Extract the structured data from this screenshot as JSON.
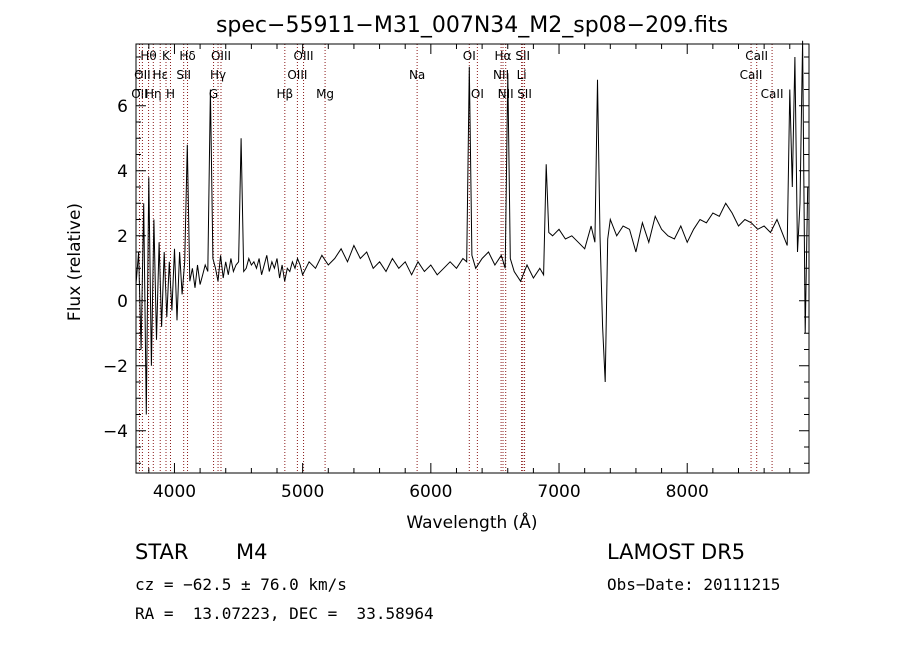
{
  "chart_data": {
    "type": "line",
    "title": "spec−55911−M31_007N34_M2_sp08−209.fits",
    "xlabel": "Wavelength (Å)",
    "ylabel": "Flux (relative)",
    "xlim": [
      3700,
      8950
    ],
    "ylim": [
      -5.3,
      7.9
    ],
    "xticks": [
      4000,
      5000,
      6000,
      7000,
      8000
    ],
    "yticks": [
      -4,
      -2,
      0,
      2,
      4,
      6
    ],
    "grid": false,
    "line_color": "#000000",
    "marker_color": "#8b1a1a",
    "series": [
      {
        "x": [
          3700,
          3720,
          3740,
          3760,
          3780,
          3800,
          3820,
          3840,
          3860,
          3880,
          3900,
          3920,
          3940,
          3960,
          3980,
          4000,
          4020,
          4040,
          4060,
          4080,
          4100,
          4120,
          4140,
          4160,
          4180,
          4200,
          4220,
          4240,
          4260,
          4280,
          4300,
          4320,
          4340,
          4360,
          4380,
          4400,
          4420,
          4440,
          4460,
          4480,
          4500,
          4520,
          4540,
          4560,
          4580,
          4600,
          4620,
          4640,
          4660,
          4680,
          4700,
          4720,
          4740,
          4760,
          4780,
          4800,
          4820,
          4840,
          4860,
          4880,
          4900,
          4920,
          4940,
          4960,
          4980,
          5000,
          5050,
          5100,
          5150,
          5200,
          5250,
          5300,
          5350,
          5400,
          5450,
          5500,
          5550,
          5600,
          5650,
          5700,
          5750,
          5800,
          5850,
          5900,
          5950,
          6000,
          6050,
          6100,
          6150,
          6200,
          6250,
          6280,
          6300,
          6320,
          6350,
          6400,
          6450,
          6500,
          6550,
          6580,
          6600,
          6620,
          6650,
          6700,
          6750,
          6800,
          6850,
          6880,
          6900,
          6920,
          6950,
          7000,
          7050,
          7100,
          7150,
          7200,
          7250,
          7280,
          7300,
          7320,
          7340,
          7360,
          7380,
          7400,
          7450,
          7500,
          7550,
          7600,
          7650,
          7700,
          7750,
          7800,
          7850,
          7900,
          7950,
          8000,
          8050,
          8100,
          8150,
          8200,
          8250,
          8300,
          8350,
          8400,
          8450,
          8500,
          8550,
          8600,
          8650,
          8700,
          8750,
          8780,
          8800,
          8820,
          8840,
          8860,
          8880,
          8900,
          8920,
          8940
        ],
        "y": [
          0.5,
          1.5,
          -1.5,
          3.0,
          -3.5,
          3.8,
          -2.0,
          2.5,
          -1.2,
          1.8,
          -0.8,
          1.5,
          -0.5,
          1.2,
          -0.3,
          1.6,
          -0.6,
          1.5,
          0.2,
          1.2,
          4.8,
          0.6,
          1.0,
          0.4,
          1.1,
          0.5,
          0.8,
          1.1,
          0.9,
          6.5,
          1.3,
          1.0,
          0.6,
          1.4,
          0.7,
          1.2,
          0.8,
          1.3,
          0.9,
          1.1,
          1.2,
          5.0,
          0.9,
          1.0,
          1.3,
          1.1,
          1.2,
          1.0,
          1.3,
          0.8,
          1.1,
          1.4,
          0.9,
          1.2,
          1.0,
          1.3,
          0.7,
          1.1,
          0.6,
          1.0,
          0.9,
          1.2,
          1.0,
          1.3,
          1.1,
          0.8,
          1.2,
          1.0,
          1.4,
          1.1,
          1.3,
          1.6,
          1.2,
          1.7,
          1.3,
          1.5,
          1.0,
          1.2,
          0.9,
          1.3,
          1.0,
          1.2,
          0.8,
          1.2,
          0.9,
          1.1,
          0.8,
          1.0,
          1.2,
          1.0,
          1.3,
          1.2,
          7.2,
          1.4,
          1.0,
          1.3,
          1.5,
          1.1,
          1.4,
          1.0,
          7.0,
          1.3,
          0.9,
          0.6,
          1.1,
          0.7,
          1.0,
          0.8,
          4.2,
          2.1,
          2.0,
          2.2,
          1.9,
          2.0,
          1.8,
          1.6,
          2.3,
          1.8,
          6.8,
          2.0,
          -0.8,
          -2.5,
          1.9,
          2.5,
          2.0,
          2.3,
          2.2,
          1.5,
          2.4,
          1.8,
          2.6,
          2.2,
          2.0,
          1.9,
          2.3,
          1.8,
          2.2,
          2.5,
          2.4,
          2.7,
          2.6,
          3.0,
          2.7,
          2.3,
          2.5,
          2.4,
          2.2,
          2.3,
          2.1,
          2.5,
          2.0,
          1.7,
          6.5,
          3.5,
          7.5,
          1.5,
          3.0,
          8.0,
          -1.0,
          3.5
        ]
      }
    ]
  },
  "line_markers": [
    {
      "label": "OII",
      "x": 3727,
      "row": 3
    },
    {
      "label": "Hθ",
      "x": 3798,
      "row": 1
    },
    {
      "label": "OII",
      "x": 3750,
      "row": 2
    },
    {
      "label": "Hη",
      "x": 3835,
      "row": 3
    },
    {
      "label": "K",
      "x": 3934,
      "row": 1
    },
    {
      "label": "Hε",
      "x": 3889,
      "row": 2
    },
    {
      "label": "H",
      "x": 3969,
      "row": 3
    },
    {
      "label": "Hδ",
      "x": 4102,
      "row": 1
    },
    {
      "label": "SII",
      "x": 4072,
      "row": 2
    },
    {
      "label": "OIII",
      "x": 4363,
      "row": 1
    },
    {
      "label": "Hγ",
      "x": 4340,
      "row": 2
    },
    {
      "label": "G",
      "x": 4305,
      "row": 3
    },
    {
      "label": "Hβ",
      "x": 4861,
      "row": 3
    },
    {
      "label": "OIII",
      "x": 5007,
      "row": 1
    },
    {
      "label": "OIII",
      "x": 4959,
      "row": 2
    },
    {
      "label": "Mg",
      "x": 5175,
      "row": 3
    },
    {
      "label": "Na",
      "x": 5893,
      "row": 2
    },
    {
      "label": "OI",
      "x": 6300,
      "row": 1
    },
    {
      "label": "OI",
      "x": 6363,
      "row": 3
    },
    {
      "label": "Hα",
      "x": 6563,
      "row": 1
    },
    {
      "label": "NII",
      "x": 6548,
      "row": 2
    },
    {
      "label": "NII",
      "x": 6584,
      "row": 3
    },
    {
      "label": "SII",
      "x": 6717,
      "row": 1
    },
    {
      "label": "Li",
      "x": 6708,
      "row": 2
    },
    {
      "label": "SII",
      "x": 6731,
      "row": 3
    },
    {
      "label": "CaII",
      "x": 8542,
      "row": 1
    },
    {
      "label": "CaII",
      "x": 8498,
      "row": 2
    },
    {
      "label": "CaII",
      "x": 8662,
      "row": 3
    }
  ],
  "info": {
    "class_label": "STAR",
    "subclass": "M4",
    "survey": "LAMOST DR5",
    "cz": "cz = −62.5 ± 76.0 km/s",
    "obs_date": "Obs−Date: 20111215",
    "coords": "RA =  13.07223, DEC =  33.58964"
  }
}
